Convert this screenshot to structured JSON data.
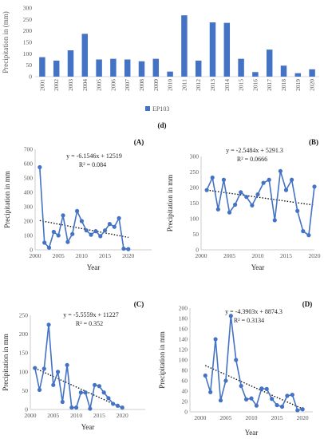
{
  "chart_data": [
    {
      "type": "bar",
      "panel_label": "(d)",
      "ylabel": "Precipitation in (mm)",
      "ylim": [
        0,
        300
      ],
      "yticks": [
        0,
        50,
        100,
        150,
        200,
        250,
        300
      ],
      "categories": [
        "2001",
        "2002",
        "2003",
        "2004",
        "2005",
        "2006",
        "2007",
        "2008",
        "2009",
        "2010",
        "2011",
        "2012",
        "2013",
        "2014",
        "2015",
        "2016",
        "2017",
        "2018",
        "2019",
        "2020"
      ],
      "series": [
        {
          "name": "EP103",
          "values": [
            85,
            70,
            115,
            187,
            75,
            78,
            75,
            67,
            78,
            22,
            268,
            70,
            237,
            235,
            78,
            20,
            118,
            48,
            15,
            32
          ]
        }
      ],
      "legend_position": "bottom",
      "color": "#4472C4"
    },
    {
      "type": "line",
      "panel_label": "(A)",
      "xlabel": "Year",
      "ylabel": "Precipitation in mm",
      "xlim": [
        2000,
        2025
      ],
      "xticks": [
        2000,
        2005,
        2010,
        2015,
        2020
      ],
      "ylim": [
        0,
        700
      ],
      "yticks": [
        0,
        100,
        200,
        300,
        400,
        500,
        600,
        700
      ],
      "x": [
        2001,
        2002,
        2003,
        2004,
        2005,
        2006,
        2007,
        2008,
        2009,
        2010,
        2011,
        2012,
        2013,
        2014,
        2015,
        2016,
        2017,
        2018,
        2019,
        2020
      ],
      "values": [
        575,
        50,
        15,
        125,
        100,
        240,
        55,
        110,
        270,
        200,
        135,
        105,
        130,
        95,
        135,
        180,
        160,
        220,
        8,
        5
      ],
      "trendline": {
        "equation": "y = -6.1546x + 12519",
        "r2": "R² = 0.084",
        "slope": -6.1546,
        "intercept": 12519
      },
      "color": "#4472C4"
    },
    {
      "type": "line",
      "panel_label": "(B)",
      "xlabel": "Year",
      "ylabel": "Precipitation in mm",
      "xlim": [
        2000,
        2020
      ],
      "xticks": [
        2000,
        2005,
        2010,
        2015,
        2020
      ],
      "ylim": [
        0,
        300
      ],
      "yticks": [
        0,
        50,
        100,
        150,
        200,
        250,
        300
      ],
      "x": [
        2001,
        2002,
        2003,
        2004,
        2005,
        2006,
        2007,
        2008,
        2009,
        2010,
        2011,
        2012,
        2013,
        2014,
        2015,
        2016,
        2017,
        2018,
        2019,
        2020
      ],
      "values": [
        192,
        232,
        130,
        225,
        120,
        145,
        185,
        170,
        143,
        178,
        215,
        225,
        95,
        253,
        192,
        225,
        125,
        60,
        47,
        203
      ],
      "trendline": {
        "equation": "y = -2.5484x + 5291.3",
        "r2": "R² = 0.0666",
        "slope": -2.5484,
        "intercept": 5291.3
      },
      "color": "#4472C4"
    },
    {
      "type": "line",
      "panel_label": "(C)",
      "xlabel": "Year",
      "ylabel": "Precipitation in mm",
      "xlim": [
        2000,
        2025
      ],
      "xticks": [
        2000,
        2005,
        2010,
        2015,
        2020
      ],
      "ylim": [
        0,
        250
      ],
      "yticks": [
        0,
        50,
        100,
        150,
        200,
        250
      ],
      "x": [
        2001,
        2002,
        2003,
        2004,
        2005,
        2006,
        2007,
        2008,
        2009,
        2010,
        2011,
        2012,
        2013,
        2014,
        2015,
        2016,
        2017,
        2018,
        2019,
        2020
      ],
      "values": [
        110,
        52,
        108,
        225,
        65,
        100,
        20,
        118,
        5,
        5,
        45,
        45,
        2,
        65,
        62,
        45,
        30,
        15,
        10,
        5
      ],
      "trendline": {
        "equation": "y = -5.5559x + 11227",
        "r2": "R² = 0.352",
        "slope": -5.5559,
        "intercept": 11227
      },
      "color": "#4472C4"
    },
    {
      "type": "line",
      "panel_label": "(D)",
      "xlabel": "Year",
      "ylabel": "Precipitation in mm",
      "xlim": [
        1998,
        2022
      ],
      "xticks": [
        2000,
        2005,
        2010,
        2015,
        2020
      ],
      "ylim": [
        0,
        200
      ],
      "yticks": [
        0,
        20,
        40,
        60,
        80,
        100,
        120,
        140,
        160,
        180,
        200
      ],
      "x": [
        2001,
        2002,
        2003,
        2004,
        2005,
        2006,
        2007,
        2008,
        2009,
        2010,
        2011,
        2012,
        2013,
        2014,
        2015,
        2016,
        2017,
        2018,
        2019,
        2020
      ],
      "values": [
        70,
        38,
        140,
        22,
        60,
        185,
        100,
        50,
        24,
        26,
        12,
        45,
        44,
        25,
        13,
        10,
        31,
        33,
        3,
        5
      ],
      "trendline": {
        "equation": "y = -4.3903x + 8874.3",
        "r2": "R² = 0.3134",
        "slope": -4.3903,
        "intercept": 8874.3
      },
      "color": "#4472C4"
    }
  ]
}
